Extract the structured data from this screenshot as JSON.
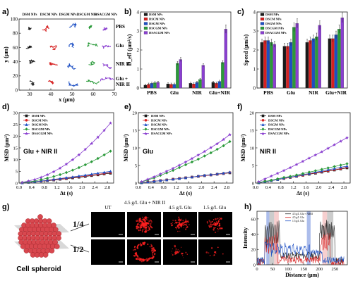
{
  "colors": {
    "DSM": "#1a1a1a",
    "DSCM": "#d62020",
    "DSGM": "#1d4fc4",
    "DSCGM": "#2a9a3a",
    "DSACGM": "#8a3fd0"
  },
  "panel_labels": [
    "a)",
    "b)",
    "c)",
    "d)",
    "e)",
    "f)",
    "g)",
    "h)"
  ],
  "chart_data": [
    {
      "id": "a",
      "type": "scatter",
      "description_columns": [
        "DSM NPs",
        "DSCM NPs",
        "DSGM NPs",
        "DSCGM NPs",
        "DSACGM NPs"
      ],
      "row_labels": [
        "PBS",
        "Glu",
        "NIR II",
        "Glu + NIR II"
      ],
      "xlabel": "x (μm)",
      "ylabel": "y (μm)",
      "xlim": [
        25,
        70
      ],
      "ylim": [
        0,
        100
      ],
      "xticks": [
        30,
        40,
        50,
        60,
        70
      ],
      "yticks": [
        0,
        20,
        40,
        60,
        80,
        100
      ]
    },
    {
      "id": "b",
      "type": "bar",
      "categories": [
        "PBS",
        "Glu",
        "NIR",
        "Glu+NIR"
      ],
      "ylabel": "D_eff (μm²/s)",
      "ylim": [
        0,
        4
      ],
      "yticks": [
        0,
        1,
        2,
        3,
        4
      ],
      "series": [
        {
          "name": "DSM NPs",
          "values": [
            0.15,
            0.22,
            0.25,
            0.3
          ]
        },
        {
          "name": "DSCM NPs",
          "values": [
            0.2,
            0.2,
            0.22,
            0.25
          ]
        },
        {
          "name": "DSGM NPs",
          "values": [
            0.25,
            0.2,
            0.3,
            0.35
          ]
        },
        {
          "name": "DSCGM NPs",
          "values": [
            0.28,
            1.3,
            0.45,
            1.35
          ]
        },
        {
          "name": "DSACGM NPs",
          "values": [
            0.3,
            1.5,
            1.2,
            3.1
          ]
        }
      ]
    },
    {
      "id": "c",
      "type": "bar",
      "categories": [
        "PBS",
        "Glu",
        "NIR",
        "Glu+NIR"
      ],
      "ylabel": "Speed (μm/s)",
      "ylim": [
        0,
        4
      ],
      "yticks": [
        0,
        1,
        2,
        3,
        4
      ],
      "series": [
        {
          "name": "DSM NPs",
          "values": [
            2.4,
            2.2,
            2.4,
            2.6
          ]
        },
        {
          "name": "DSCM NPs",
          "values": [
            2.5,
            2.2,
            2.5,
            2.6
          ]
        },
        {
          "name": "DSGM NPs",
          "values": [
            2.5,
            2.4,
            2.6,
            2.8
          ]
        },
        {
          "name": "DSCGM NPs",
          "values": [
            2.4,
            3.2,
            2.7,
            3.1
          ]
        },
        {
          "name": "DSACGM NPs",
          "values": [
            2.3,
            3.4,
            3.3,
            3.7
          ]
        }
      ]
    },
    {
      "id": "d",
      "type": "line",
      "annotation": "Glu + NIR II",
      "xlabel": "Δt (s)",
      "ylabel": "MSD (μm²)",
      "xlim": [
        0,
        3
      ],
      "ylim": [
        0,
        30
      ],
      "xticks": [
        0.0,
        0.4,
        0.8,
        1.2,
        1.6,
        2.0,
        2.4,
        2.8
      ],
      "yticks": [
        0,
        5,
        10,
        15,
        20,
        25,
        30
      ],
      "x": [
        0.1,
        0.3,
        0.5,
        0.7,
        0.9,
        1.1,
        1.3,
        1.5,
        1.7,
        1.9,
        2.1,
        2.3,
        2.5,
        2.7,
        2.9
      ],
      "series": [
        {
          "name": "DSM NPs",
          "values": [
            0.1,
            0.3,
            0.5,
            0.8,
            1.0,
            1.3,
            1.6,
            1.9,
            2.2,
            2.5,
            2.8,
            3.2,
            3.5,
            3.9,
            4.2
          ]
        },
        {
          "name": "DSCM NPs",
          "values": [
            0.1,
            0.3,
            0.6,
            0.8,
            1.1,
            1.4,
            1.7,
            2.0,
            2.4,
            2.7,
            3.0,
            3.4,
            3.7,
            4.1,
            4.5
          ]
        },
        {
          "name": "DSGM NPs",
          "values": [
            0.1,
            0.4,
            0.6,
            0.9,
            1.2,
            1.6,
            1.9,
            2.3,
            2.6,
            3.0,
            3.4,
            3.8,
            4.2,
            4.6,
            5.0
          ]
        },
        {
          "name": "DSCGM NPs",
          "values": [
            0.2,
            0.5,
            0.9,
            1.5,
            2.1,
            2.8,
            3.6,
            4.5,
            5.5,
            6.6,
            7.8,
            9.1,
            10.5,
            12.0,
            13.6
          ]
        },
        {
          "name": "DSACGM NPs",
          "values": [
            0.3,
            0.9,
            1.6,
            2.5,
            3.6,
            4.9,
            6.4,
            8.1,
            10.0,
            12.1,
            14.4,
            16.9,
            19.6,
            22.5,
            25.6
          ]
        }
      ]
    },
    {
      "id": "e",
      "type": "line",
      "annotation": "Glu",
      "xlabel": "Δt (s)",
      "ylabel": "MSD (μm²)",
      "xlim": [
        0,
        3
      ],
      "ylim": [
        0,
        20
      ],
      "xticks": [
        0.0,
        0.4,
        0.8,
        1.2,
        1.6,
        2.0,
        2.4,
        2.8
      ],
      "yticks": [
        0,
        5,
        10,
        15,
        20
      ],
      "x": [
        0.1,
        0.3,
        0.5,
        0.7,
        0.9,
        1.1,
        1.3,
        1.5,
        1.7,
        1.9,
        2.1,
        2.3,
        2.5,
        2.7,
        2.9
      ],
      "series": [
        {
          "name": "DSM NPs",
          "values": [
            0.1,
            0.3,
            0.5,
            0.7,
            0.9,
            1.1,
            1.3,
            1.5,
            1.7,
            1.9,
            2.1,
            2.3,
            2.5,
            2.7,
            2.9
          ]
        },
        {
          "name": "DSCM NPs",
          "values": [
            0.1,
            0.3,
            0.5,
            0.7,
            0.9,
            1.1,
            1.3,
            1.5,
            1.7,
            1.9,
            2.1,
            2.3,
            2.5,
            2.7,
            3.0
          ]
        },
        {
          "name": "DSGM NPs",
          "values": [
            0.1,
            0.3,
            0.5,
            0.7,
            0.9,
            1.1,
            1.3,
            1.5,
            1.7,
            2.0,
            2.2,
            2.4,
            2.6,
            2.8,
            3.1
          ]
        },
        {
          "name": "DSCGM NPs",
          "values": [
            0.3,
            0.9,
            1.5,
            2.2,
            2.9,
            3.6,
            4.4,
            5.2,
            6.0,
            6.8,
            7.7,
            8.6,
            9.6,
            10.6,
            11.8
          ]
        },
        {
          "name": "DSACGM NPs",
          "values": [
            0.4,
            1.1,
            1.8,
            2.6,
            3.4,
            4.2,
            5.1,
            6.0,
            7.0,
            8.0,
            9.0,
            10.1,
            11.2,
            12.4,
            13.8
          ]
        }
      ]
    },
    {
      "id": "f",
      "type": "line",
      "annotation": "NIR II",
      "xlabel": "Δt (s)",
      "ylabel": "MSD (μm²)",
      "xlim": [
        0,
        3
      ],
      "ylim": [
        0,
        20
      ],
      "xticks": [
        0.0,
        0.4,
        0.8,
        1.2,
        1.6,
        2.0,
        2.4,
        2.8
      ],
      "yticks": [
        0,
        5,
        10,
        15,
        20
      ],
      "x": [
        0.1,
        0.3,
        0.5,
        0.7,
        0.9,
        1.1,
        1.3,
        1.5,
        1.7,
        1.9,
        2.1,
        2.3,
        2.5,
        2.7,
        2.9
      ],
      "series": [
        {
          "name": "DSM NPs",
          "values": [
            0.1,
            0.4,
            0.7,
            1.0,
            1.3,
            1.6,
            1.9,
            2.2,
            2.5,
            2.8,
            3.1,
            3.4,
            3.7,
            4.0,
            4.3
          ]
        },
        {
          "name": "DSCM NPs",
          "values": [
            0.1,
            0.4,
            0.7,
            1.0,
            1.3,
            1.6,
            1.9,
            2.2,
            2.6,
            2.9,
            3.2,
            3.5,
            3.8,
            4.1,
            4.5
          ]
        },
        {
          "name": "DSGM NPs",
          "values": [
            0.1,
            0.4,
            0.7,
            1.0,
            1.4,
            1.7,
            2.0,
            2.4,
            2.7,
            3.1,
            3.4,
            3.8,
            4.1,
            4.5,
            4.8
          ]
        },
        {
          "name": "DSCGM NPs",
          "values": [
            0.2,
            0.5,
            0.8,
            1.2,
            1.6,
            1.9,
            2.3,
            2.7,
            3.1,
            3.5,
            3.9,
            4.3,
            4.7,
            5.1,
            5.5
          ]
        },
        {
          "name": "DSACGM NPs",
          "values": [
            0.4,
            1.2,
            2.0,
            2.8,
            3.6,
            4.4,
            5.3,
            6.2,
            7.1,
            8.0,
            8.9,
            9.9,
            10.9,
            11.9,
            12.9
          ]
        }
      ]
    },
    {
      "id": "h",
      "type": "line",
      "xlabel": "Distance (μm)",
      "ylabel": "Intensity",
      "xlim": [
        0,
        290
      ],
      "ylim": [
        0,
        70
      ],
      "xticks": [
        0,
        50,
        100,
        150,
        200,
        250
      ],
      "yticks": [
        0,
        20,
        40,
        60
      ],
      "series": [
        {
          "name": "4.5 g/L Glu + NIRII",
          "color": "#222222"
        },
        {
          "name": "4.5 g/L Glu",
          "color": "#d62020"
        },
        {
          "name": "1.5 g/L Glu",
          "color": "#1d4fc4"
        }
      ]
    }
  ],
  "panel_g": {
    "spheroid_label": "Cell spheroid",
    "slice_quarter": "1/4",
    "slice_half": "1/2",
    "columns": [
      "UT",
      "4.5 g/L Glu + NIR II",
      "4.5 g/L Glu",
      "1.5 g/L Glu"
    ]
  }
}
